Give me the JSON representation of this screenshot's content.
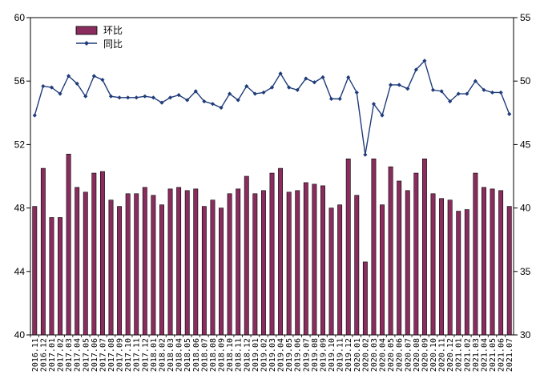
{
  "chart_data": {
    "type": "bar+line",
    "categories": [
      "2016.11",
      "2016.12",
      "2017.01",
      "2017.02",
      "2017.03",
      "2017.04",
      "2017.05",
      "2017.06",
      "2017.07",
      "2017.08",
      "2017.09",
      "2017.10",
      "2017.11",
      "2017.12",
      "2018.01",
      "2018.02",
      "2018.03",
      "2018.04",
      "2018.05",
      "2018.06",
      "2018.07",
      "2018.08",
      "2018.09",
      "2018.10",
      "2018.11",
      "2018.12",
      "2019.01",
      "2019.02",
      "2019.03",
      "2019.04",
      "2019.05",
      "2019.06",
      "2019.07",
      "2019.08",
      "2019.09",
      "2019.10",
      "2019.11",
      "2019.12",
      "2020.01",
      "2020.02",
      "2020.03",
      "2020.04",
      "2020.05",
      "2020.06",
      "2020.07",
      "2020.08",
      "2020.09",
      "2020.10",
      "2020.11",
      "2020.12",
      "2021.01",
      "2021.02",
      "2021.03",
      "2021.04",
      "2021.05",
      "2021.06",
      "2021.07"
    ],
    "series": [
      {
        "name": "环比",
        "type": "bar",
        "axis": "left",
        "color": "#8a2d5e",
        "values": [
          48.1,
          50.5,
          47.4,
          47.4,
          51.4,
          49.3,
          49.0,
          50.2,
          50.3,
          48.5,
          48.1,
          48.9,
          48.9,
          49.3,
          48.8,
          48.2,
          49.2,
          49.3,
          49.1,
          49.2,
          48.1,
          48.5,
          48.0,
          48.9,
          49.2,
          50.0,
          48.9,
          49.1,
          50.2,
          50.5,
          49.0,
          49.1,
          49.6,
          49.5,
          49.4,
          48.0,
          48.2,
          51.1,
          48.8,
          44.6,
          51.1,
          48.2,
          50.6,
          49.7,
          49.1,
          50.2,
          51.1,
          48.9,
          48.6,
          48.5,
          47.8,
          47.9,
          50.2,
          49.3,
          49.2,
          49.1,
          48.1
        ]
      },
      {
        "name": "同比",
        "type": "line",
        "axis": "right",
        "color": "#1f3c7a",
        "values": [
          47.3,
          49.6,
          49.5,
          49.0,
          50.4,
          49.8,
          48.8,
          50.4,
          50.1,
          48.8,
          48.7,
          48.7,
          48.7,
          48.8,
          48.7,
          48.3,
          48.7,
          48.9,
          48.5,
          49.2,
          48.4,
          48.2,
          47.9,
          49.0,
          48.5,
          49.6,
          49.0,
          49.1,
          49.5,
          50.6,
          49.5,
          49.3,
          50.2,
          49.9,
          50.3,
          48.6,
          48.6,
          50.3,
          49.1,
          44.2,
          48.2,
          47.3,
          49.7,
          49.7,
          49.4,
          50.9,
          51.6,
          49.3,
          49.2,
          48.4,
          49.0,
          49.0,
          50.0,
          49.3,
          49.1,
          49.1,
          47.4
        ]
      }
    ],
    "y_left": {
      "min": 40,
      "max": 60,
      "ticks": [
        40,
        44,
        48,
        52,
        56,
        60
      ]
    },
    "y_right": {
      "min": 30,
      "max": 55,
      "ticks": [
        30,
        35,
        40,
        45,
        50,
        55
      ]
    },
    "legend": {
      "placement": "top-left",
      "entries": [
        "环比",
        "同比"
      ]
    },
    "grid": false
  }
}
